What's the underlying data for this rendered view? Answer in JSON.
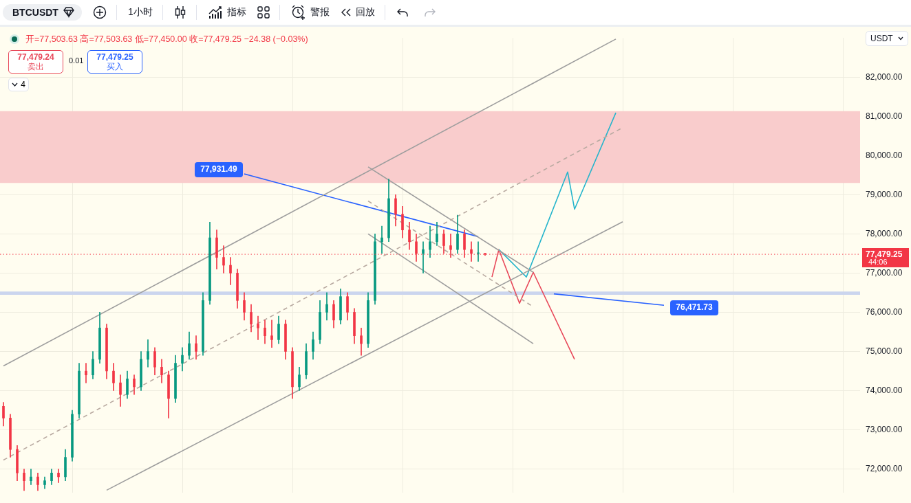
{
  "chart_data": {
    "type": "candlestick",
    "categories": [
      null,
      null,
      null,
      null,
      null,
      null,
      null,
      null,
      null,
      null,
      null,
      null,
      null,
      null,
      null,
      null,
      null,
      null,
      null,
      null,
      null,
      null,
      null,
      null,
      null,
      null,
      null,
      null,
      null,
      null,
      null,
      null,
      null,
      null,
      null,
      null,
      null,
      null,
      null,
      null,
      null,
      null,
      null,
      null,
      null,
      null,
      null,
      null,
      null,
      null,
      null,
      null,
      null,
      null,
      null,
      null,
      null,
      null,
      null,
      null,
      null,
      null,
      null,
      null,
      null,
      null,
      null,
      null,
      null,
      null,
      null,
      null,
      null,
      null,
      null,
      null,
      null,
      null,
      null,
      null,
      null,
      null,
      null,
      null,
      null,
      null,
      null,
      null,
      null,
      null,
      null,
      null,
      null,
      null,
      null,
      null,
      null,
      null,
      null,
      null,
      null,
      null,
      null,
      null,
      null,
      null,
      null,
      null,
      null,
      null,
      null,
      null,
      null,
      null,
      null,
      null,
      null,
      null,
      null,
      null,
      null,
      null,
      null,
      null,
      null
    ],
    "ohlc": [
      [
        73600,
        73700,
        73100,
        73300
      ],
      [
        73300,
        73400,
        72300,
        72500
      ],
      [
        72500,
        72600,
        71700,
        71900
      ],
      [
        71900,
        72000,
        71450,
        71700
      ],
      [
        71700,
        72000,
        71600,
        71800
      ],
      [
        71800,
        71900,
        71450,
        71600
      ],
      [
        71600,
        71800,
        71500,
        71700
      ],
      [
        71700,
        72000,
        71600,
        71900
      ],
      [
        71900,
        72000,
        71650,
        71800
      ],
      [
        71800,
        72500,
        71700,
        72300
      ],
      [
        72300,
        73500,
        72200,
        73400
      ],
      [
        73400,
        74700,
        73300,
        74500
      ],
      [
        74500,
        74700,
        74200,
        74400
      ],
      [
        74400,
        75000,
        74300,
        74800
      ],
      [
        74800,
        76000,
        74700,
        75600
      ],
      [
        75600,
        75700,
        74300,
        74500
      ],
      [
        74500,
        74700,
        74000,
        74200
      ],
      [
        74200,
        74400,
        73600,
        73900
      ],
      [
        73900,
        74500,
        73800,
        74300
      ],
      [
        74300,
        74400,
        73900,
        74100
      ],
      [
        74100,
        75000,
        74000,
        74800
      ],
      [
        74800,
        75300,
        74600,
        75000
      ],
      [
        75000,
        75100,
        74400,
        74600
      ],
      [
        74600,
        74800,
        74200,
        74400
      ],
      [
        74400,
        74500,
        73300,
        73800
      ],
      [
        73800,
        74900,
        73700,
        74700
      ],
      [
        74700,
        75100,
        74500,
        74900
      ],
      [
        74900,
        75500,
        74800,
        75200
      ],
      [
        75200,
        75400,
        74800,
        75000
      ],
      [
        75000,
        76500,
        74900,
        76300
      ],
      [
        76300,
        78300,
        76200,
        77900
      ],
      [
        77900,
        78100,
        77100,
        77400
      ],
      [
        77400,
        77700,
        77000,
        77200
      ],
      [
        77200,
        77400,
        76700,
        77000
      ],
      [
        77000,
        77100,
        76100,
        76300
      ],
      [
        76300,
        76500,
        75800,
        76000
      ],
      [
        76000,
        76200,
        75500,
        75700
      ],
      [
        75700,
        75900,
        75300,
        75600
      ],
      [
        75600,
        75800,
        75200,
        75400
      ],
      [
        75400,
        75800,
        75100,
        75300
      ],
      [
        75300,
        75900,
        75200,
        75700
      ],
      [
        75700,
        75800,
        74800,
        75000
      ],
      [
        75000,
        75100,
        73800,
        74100
      ],
      [
        74100,
        74600,
        74000,
        74400
      ],
      [
        74400,
        75200,
        74300,
        75000
      ],
      [
        75000,
        75500,
        74800,
        75300
      ],
      [
        75300,
        76300,
        75200,
        76000
      ],
      [
        76000,
        76500,
        75800,
        76200
      ],
      [
        76200,
        76300,
        75600,
        75800
      ],
      [
        75800,
        76600,
        75700,
        76400
      ],
      [
        76400,
        76500,
        75800,
        76000
      ],
      [
        76000,
        76100,
        75200,
        75400
      ],
      [
        75400,
        75600,
        74900,
        75200
      ],
      [
        75200,
        76500,
        75100,
        76300
      ],
      [
        76300,
        78000,
        76200,
        77800
      ],
      [
        77800,
        78200,
        77500,
        77900
      ],
      [
        77900,
        79400,
        77800,
        78900
      ],
      [
        78900,
        79000,
        78200,
        78500
      ],
      [
        78500,
        78700,
        77900,
        78100
      ],
      [
        78100,
        78300,
        77600,
        77800
      ],
      [
        77800,
        78000,
        77300,
        77500
      ],
      [
        77500,
        77800,
        77000,
        77600
      ],
      [
        77600,
        78200,
        77400,
        77800
      ],
      [
        77800,
        78300,
        77700,
        78000
      ],
      [
        78000,
        78100,
        77500,
        77700
      ],
      [
        77700,
        78000,
        77400,
        77600
      ],
      [
        77600,
        78480,
        77500,
        78000
      ],
      [
        78000,
        78100,
        77400,
        77600
      ],
      [
        77600,
        77800,
        77300,
        77500
      ],
      [
        77500,
        77800,
        77300,
        77503.63
      ],
      [
        77503.63,
        77503.63,
        77450,
        77479.25
      ],
      null,
      null,
      null,
      null,
      null,
      null,
      null,
      null,
      null,
      null,
      null,
      null,
      null,
      null,
      null,
      null,
      null,
      null,
      null,
      null,
      null,
      null,
      null,
      null,
      null,
      null,
      null,
      null,
      null,
      null,
      null,
      null,
      null,
      null,
      null,
      null,
      null,
      null,
      null,
      null,
      null,
      null,
      null,
      null,
      null,
      null,
      null,
      null,
      null,
      null,
      null,
      null,
      null,
      null
    ],
    "series": [
      {
        "type": "line",
        "color": "#9e9e9e",
        "values": [
          74630,
          null,
          null,
          null,
          null,
          null,
          null,
          null,
          null,
          null,
          null,
          null,
          null,
          null,
          null,
          null,
          null,
          null,
          null,
          null,
          null,
          null,
          null,
          null,
          null,
          null,
          null,
          null,
          null,
          null,
          null,
          null,
          null,
          null,
          null,
          null,
          null,
          null,
          null,
          null,
          null,
          null,
          null,
          null,
          null,
          null,
          null,
          null,
          null,
          null,
          null,
          null,
          null,
          null,
          null,
          null,
          null,
          null,
          null,
          null,
          null,
          null,
          null,
          null,
          null,
          null,
          null,
          null,
          null,
          null,
          null,
          null,
          null,
          null,
          null,
          null,
          null,
          null,
          null,
          null,
          null,
          null,
          null,
          null,
          null,
          null,
          null,
          null,
          null,
          82970,
          null,
          null,
          null,
          null,
          null,
          null,
          null,
          null,
          null,
          null,
          null,
          null,
          null,
          null,
          null,
          null,
          null,
          null,
          null,
          null,
          null,
          null,
          null,
          null,
          null,
          null,
          null,
          null,
          null,
          null,
          null,
          null,
          null,
          null,
          null
        ]
      },
      {
        "type": "line",
        "color": "#9e9e9e",
        "values": [
          null,
          null,
          null,
          null,
          null,
          null,
          null,
          null,
          null,
          null,
          null,
          null,
          null,
          null,
          null,
          71460,
          null,
          null,
          null,
          null,
          null,
          null,
          null,
          null,
          null,
          null,
          null,
          null,
          null,
          null,
          null,
          null,
          null,
          null,
          null,
          null,
          null,
          null,
          null,
          null,
          null,
          null,
          null,
          null,
          null,
          null,
          null,
          null,
          null,
          null,
          null,
          null,
          null,
          null,
          null,
          null,
          null,
          null,
          null,
          null,
          null,
          null,
          null,
          null,
          null,
          null,
          null,
          null,
          null,
          null,
          null,
          null,
          null,
          null,
          null,
          null,
          null,
          null,
          null,
          null,
          null,
          null,
          null,
          null,
          null,
          null,
          null,
          null,
          null,
          null,
          78310,
          null,
          null,
          null,
          null,
          null,
          null,
          null,
          null,
          null,
          null,
          null,
          null,
          null,
          null,
          null,
          null,
          null,
          null,
          null,
          null,
          null,
          null,
          null,
          null,
          null,
          null,
          null,
          null,
          null,
          null,
          null,
          null,
          null,
          null
        ]
      },
      {
        "type": "line",
        "color": "#b8a9a0",
        "line_style": "dashed",
        "values": [
          72230,
          null,
          null,
          null,
          null,
          null,
          null,
          null,
          null,
          null,
          null,
          null,
          null,
          null,
          null,
          null,
          null,
          null,
          null,
          null,
          null,
          null,
          null,
          null,
          null,
          null,
          null,
          null,
          null,
          null,
          null,
          null,
          null,
          null,
          null,
          null,
          null,
          null,
          null,
          null,
          null,
          null,
          null,
          null,
          null,
          null,
          null,
          null,
          null,
          null,
          null,
          null,
          null,
          null,
          null,
          null,
          null,
          null,
          null,
          null,
          null,
          null,
          null,
          null,
          null,
          null,
          null,
          null,
          null,
          null,
          null,
          null,
          null,
          null,
          null,
          null,
          null,
          null,
          null,
          null,
          null,
          null,
          null,
          null,
          null,
          null,
          null,
          null,
          null,
          null,
          80710,
          null,
          null,
          null,
          null,
          null,
          null,
          null,
          null,
          null,
          null,
          null,
          null,
          null,
          null,
          null,
          null,
          null,
          null,
          null,
          null,
          null,
          null,
          null,
          null,
          null,
          null,
          null,
          null,
          null,
          null,
          null,
          null,
          null,
          null
        ]
      },
      {
        "type": "line",
        "color": "#9e9e9e",
        "values": [
          null,
          null,
          null,
          null,
          null,
          null,
          null,
          null,
          null,
          null,
          null,
          null,
          null,
          null,
          null,
          null,
          null,
          null,
          null,
          null,
          null,
          null,
          null,
          null,
          null,
          null,
          null,
          null,
          null,
          null,
          null,
          null,
          null,
          null,
          null,
          null,
          null,
          null,
          null,
          null,
          null,
          null,
          null,
          null,
          null,
          null,
          null,
          null,
          null,
          null,
          null,
          null,
          null,
          79710,
          null,
          null,
          null,
          null,
          null,
          null,
          null,
          null,
          null,
          null,
          null,
          null,
          null,
          null,
          null,
          null,
          null,
          null,
          null,
          null,
          null,
          null,
          null,
          77020,
          null,
          null,
          null,
          null,
          null,
          null,
          null,
          null,
          null,
          null,
          null,
          null,
          null,
          null,
          null,
          null,
          null,
          null,
          null,
          null,
          null,
          null,
          null,
          null,
          null,
          null,
          null,
          null,
          null,
          null,
          null,
          null,
          null,
          null,
          null,
          null,
          null,
          null,
          null,
          null,
          null,
          null,
          null,
          null,
          null,
          null,
          null
        ]
      },
      {
        "type": "line",
        "color": "#9e9e9e",
        "values": [
          null,
          null,
          null,
          null,
          null,
          null,
          null,
          null,
          null,
          null,
          null,
          null,
          null,
          null,
          null,
          null,
          null,
          null,
          null,
          null,
          null,
          null,
          null,
          null,
          null,
          null,
          null,
          null,
          null,
          null,
          null,
          null,
          null,
          null,
          null,
          null,
          null,
          null,
          null,
          null,
          null,
          null,
          null,
          null,
          null,
          null,
          null,
          null,
          null,
          null,
          null,
          null,
          null,
          78000,
          null,
          null,
          null,
          null,
          null,
          null,
          null,
          null,
          null,
          null,
          null,
          null,
          null,
          null,
          null,
          null,
          null,
          null,
          null,
          null,
          null,
          null,
          null,
          75200,
          null,
          null,
          null,
          null,
          null,
          null,
          null,
          null,
          null,
          null,
          null,
          null,
          null,
          null,
          null,
          null,
          null,
          null,
          null,
          null,
          null,
          null,
          null,
          null,
          null,
          null,
          null,
          null,
          null,
          null,
          null,
          null,
          null,
          null,
          null,
          null,
          null,
          null,
          null,
          null,
          null,
          null,
          null,
          null,
          null,
          null,
          null
        ]
      },
      {
        "type": "line",
        "color": "#b8a9a0",
        "line_style": "dashed",
        "values": [
          null,
          null,
          null,
          null,
          null,
          null,
          null,
          null,
          null,
          null,
          null,
          null,
          null,
          null,
          null,
          null,
          null,
          null,
          null,
          null,
          null,
          null,
          null,
          null,
          null,
          null,
          null,
          null,
          null,
          null,
          null,
          null,
          null,
          null,
          null,
          null,
          null,
          null,
          null,
          null,
          null,
          null,
          null,
          null,
          null,
          null,
          null,
          null,
          null,
          null,
          null,
          null,
          null,
          78840,
          null,
          null,
          null,
          null,
          null,
          null,
          null,
          null,
          null,
          null,
          null,
          null,
          null,
          null,
          null,
          null,
          null,
          null,
          null,
          null,
          null,
          null,
          null,
          76140,
          null,
          null,
          null,
          null,
          null,
          null,
          null,
          null,
          null,
          null,
          null,
          null,
          null,
          null,
          null,
          null,
          null,
          null,
          null,
          null,
          null,
          null,
          null,
          null,
          null,
          null,
          null,
          null,
          null,
          null,
          null,
          null,
          null,
          null,
          null,
          null,
          null,
          null,
          null,
          null,
          null,
          null,
          null,
          null,
          null,
          null,
          null
        ]
      },
      {
        "type": "line",
        "color": "#2962ff",
        "values": [
          null,
          null,
          null,
          null,
          null,
          null,
          null,
          null,
          null,
          null,
          null,
          null,
          null,
          null,
          null,
          null,
          null,
          null,
          null,
          null,
          null,
          null,
          null,
          null,
          null,
          null,
          null,
          null,
          null,
          null,
          null,
          null,
          null,
          null,
          null,
          79530,
          null,
          null,
          null,
          null,
          null,
          null,
          null,
          null,
          null,
          null,
          null,
          null,
          null,
          null,
          null,
          null,
          null,
          null,
          null,
          null,
          null,
          null,
          null,
          null,
          null,
          null,
          null,
          null,
          null,
          null,
          null,
          null,
          null,
          77930,
          null,
          null,
          null,
          null,
          null,
          null,
          null,
          null,
          null,
          null,
          null,
          null,
          null,
          null,
          null,
          null,
          null,
          null,
          null,
          null,
          null,
          null,
          null,
          null,
          null,
          null,
          null,
          null,
          null,
          null,
          null,
          null,
          null,
          null,
          null,
          null,
          null,
          null,
          null,
          null,
          null,
          null,
          null,
          null,
          null,
          null,
          null,
          null,
          null,
          null,
          null,
          null,
          null,
          null,
          null
        ]
      },
      {
        "type": "line",
        "color": "#2962ff",
        "values": [
          null,
          null,
          null,
          null,
          null,
          null,
          null,
          null,
          null,
          null,
          null,
          null,
          null,
          null,
          null,
          null,
          null,
          null,
          null,
          null,
          null,
          null,
          null,
          null,
          null,
          null,
          null,
          null,
          null,
          null,
          null,
          null,
          null,
          null,
          null,
          null,
          null,
          null,
          null,
          null,
          null,
          null,
          null,
          null,
          null,
          null,
          null,
          null,
          null,
          null,
          null,
          null,
          null,
          null,
          null,
          null,
          null,
          null,
          null,
          null,
          null,
          null,
          null,
          null,
          null,
          null,
          null,
          null,
          null,
          null,
          null,
          null,
          null,
          null,
          null,
          null,
          null,
          null,
          null,
          null,
          76470,
          null,
          null,
          null,
          null,
          null,
          null,
          null,
          null,
          null,
          null,
          null,
          null,
          null,
          null,
          null,
          76180,
          null,
          null,
          null,
          null,
          null,
          null,
          null,
          null,
          null,
          null,
          null,
          null,
          null,
          null,
          null,
          null,
          null,
          null,
          null,
          null,
          null,
          null,
          null,
          null,
          null,
          null,
          null,
          null
        ]
      },
      {
        "type": "line",
        "color": "#26b5cc",
        "values": [
          null,
          null,
          null,
          null,
          null,
          null,
          null,
          null,
          null,
          null,
          null,
          null,
          null,
          null,
          null,
          null,
          null,
          null,
          null,
          null,
          null,
          null,
          null,
          null,
          null,
          null,
          null,
          null,
          null,
          null,
          null,
          null,
          null,
          null,
          null,
          null,
          null,
          null,
          null,
          null,
          null,
          null,
          null,
          null,
          null,
          null,
          null,
          null,
          null,
          null,
          null,
          null,
          null,
          null,
          null,
          null,
          null,
          null,
          null,
          null,
          null,
          null,
          null,
          null,
          null,
          null,
          null,
          null,
          null,
          null,
          null,
          null,
          77600,
          null,
          null,
          null,
          76900,
          null,
          null,
          null,
          null,
          null,
          79580,
          78630,
          null,
          null,
          null,
          null,
          null,
          81090,
          null,
          null,
          null,
          null,
          null,
          null,
          null,
          null,
          null,
          null,
          null,
          null,
          null,
          null,
          null,
          null,
          null,
          null,
          null,
          null,
          null,
          null,
          null,
          null,
          null,
          null,
          null,
          null,
          null,
          null,
          null,
          null,
          null,
          null,
          null
        ]
      },
      {
        "type": "line",
        "color": "#e8485a",
        "values": [
          null,
          null,
          null,
          null,
          null,
          null,
          null,
          null,
          null,
          null,
          null,
          null,
          null,
          null,
          null,
          null,
          null,
          null,
          null,
          null,
          null,
          null,
          null,
          null,
          null,
          null,
          null,
          null,
          null,
          null,
          null,
          null,
          null,
          null,
          null,
          null,
          null,
          null,
          null,
          null,
          null,
          null,
          null,
          null,
          null,
          null,
          null,
          null,
          null,
          null,
          null,
          null,
          null,
          null,
          null,
          null,
          null,
          null,
          null,
          null,
          null,
          null,
          null,
          null,
          null,
          null,
          null,
          null,
          null,
          null,
          null,
          76900,
          77600,
          null,
          null,
          76230,
          null,
          77020,
          null,
          null,
          null,
          null,
          null,
          74800,
          null,
          null,
          null,
          null,
          null,
          null,
          null,
          null,
          null,
          null,
          null,
          null,
          null,
          null,
          null,
          null,
          null,
          null,
          null,
          null,
          null,
          null,
          null,
          null,
          null,
          null,
          null,
          null,
          null,
          null,
          null,
          null,
          null,
          null,
          null,
          null,
          null,
          null,
          null,
          null,
          null
        ]
      }
    ],
    "ylim": [
      71400,
      83000
    ],
    "yticks": [
      {
        "value": 72000,
        "label": "72,000.00"
      },
      {
        "value": 73000,
        "label": "73,000.00"
      },
      {
        "value": 74000,
        "label": "74,000.00"
      },
      {
        "value": 75000,
        "label": "75,000.00"
      },
      {
        "value": 76000,
        "label": "76,000.00"
      },
      {
        "value": 77000,
        "label": "77,000.00"
      },
      {
        "value": 78000,
        "label": "78,000.00"
      },
      {
        "value": 79000,
        "label": "79,000.00"
      },
      {
        "value": 80000,
        "label": "80,000.00"
      },
      {
        "value": 81000,
        "label": "81,000.00"
      },
      {
        "value": 82000,
        "label": "82,000.00"
      }
    ],
    "bands": [
      {
        "axis": "y",
        "from": 79300,
        "to": 81130,
        "color": "#f9cccc"
      },
      {
        "axis": "y",
        "from": 76445,
        "to": 76530,
        "color": "#cbd5ee"
      }
    ],
    "ref_lines": [
      {
        "axis": "y",
        "value": 77479.25,
        "label": "77,479.25",
        "color": "#f23645",
        "line_style": "dotted"
      }
    ],
    "annotations": [
      "BTCUSDT",
      "1小时",
      "指标",
      "警报",
      "回放",
      "开=77,503.63 高=77,503.63 低=77,450.00 收=77,479.25 −24.38 (−0.03%)",
      "77,479.24",
      "卖出",
      "0.01",
      "77,479.25",
      "买入",
      "4",
      "USDT",
      "44:06",
      "77,931.49",
      "76,471.73"
    ],
    "grid": true,
    "tick_labels": "y"
  }
}
